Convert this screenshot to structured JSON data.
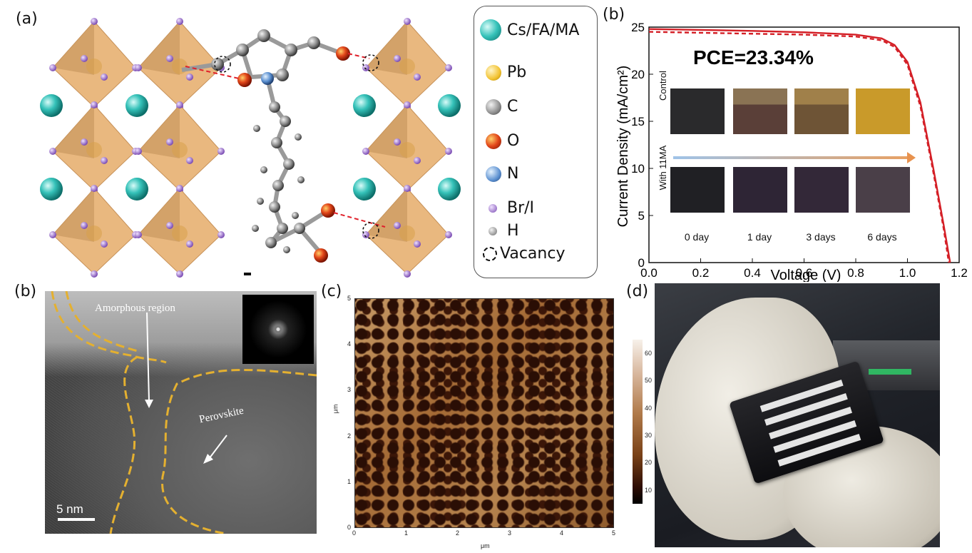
{
  "panels": {
    "a": {
      "label": "(a)"
    },
    "b_top": {
      "label": "(b)"
    },
    "b_bottom": {
      "label": "(b)"
    },
    "c": {
      "label": "(c)"
    },
    "d": {
      "label": "(d)"
    }
  },
  "legend": {
    "items": [
      {
        "label": "Cs/FA/MA",
        "color": "#2fb8b0"
      },
      {
        "label": "Pb",
        "color": "#f2c230"
      },
      {
        "label": "C",
        "color": "#8a8a8a"
      },
      {
        "label": "O",
        "color": "#d8320e"
      },
      {
        "label": "N",
        "color": "#4f86c6"
      },
      {
        "label": "Br/I",
        "color": "#9b6cc9"
      },
      {
        "label": "H",
        "color": "#8a8a8a"
      },
      {
        "label": "Vacancy",
        "color": "#000000"
      }
    ]
  },
  "chart_data": {
    "type": "line",
    "xlabel": "Voltage (V)",
    "ylabel": "Current Density (mA/cm²)",
    "xlim": [
      0.0,
      1.2
    ],
    "ylim": [
      0,
      25
    ],
    "xticks": [
      "0.0",
      "0.2",
      "0.4",
      "0.6",
      "0.8",
      "1.0",
      "1.2"
    ],
    "yticks": [
      "0",
      "5",
      "10",
      "15",
      "20",
      "25"
    ],
    "annotation": "PCE=23.34%",
    "series": [
      {
        "style": "solid",
        "color": "#d41f26",
        "x": [
          0.0,
          0.2,
          0.4,
          0.6,
          0.8,
          0.9,
          0.95,
          1.0,
          1.05,
          1.1,
          1.14,
          1.165
        ],
        "y": [
          24.8,
          24.7,
          24.6,
          24.45,
          24.2,
          23.8,
          23.1,
          21.3,
          17.0,
          10.0,
          4.0,
          0
        ]
      },
      {
        "style": "dashed",
        "color": "#d41f26",
        "x": [
          0.0,
          0.2,
          0.4,
          0.6,
          0.8,
          0.9,
          0.95,
          1.0,
          1.05,
          1.1,
          1.14,
          1.16
        ],
        "y": [
          24.5,
          24.4,
          24.3,
          24.2,
          24.0,
          23.6,
          22.9,
          21.0,
          16.6,
          9.6,
          3.6,
          0
        ]
      }
    ],
    "inset": {
      "row_labels": [
        "Control",
        "With 11MA"
      ],
      "day_labels": [
        "0 day",
        "1 day",
        "3 days",
        "6 days"
      ],
      "control_colors": [
        "#2a2a2c",
        "#5a3f38",
        "#6e5436",
        "#c99a2a"
      ],
      "with_colors": [
        "#202024",
        "#2e2535",
        "#332838",
        "#4a3f48"
      ]
    }
  },
  "tem": {
    "amorphous_label": "Amorphous region",
    "perovskite_label": "Perovskite",
    "scale_label": "5 nm"
  },
  "afm": {
    "axis_unit": "μm",
    "xticks": [
      "0",
      "1",
      "2",
      "3",
      "4",
      "5"
    ],
    "yticks": [
      "0",
      "1",
      "2",
      "3",
      "4",
      "5"
    ],
    "colorbar_ticks": [
      "60",
      "50",
      "40",
      "30",
      "20",
      "10"
    ]
  }
}
